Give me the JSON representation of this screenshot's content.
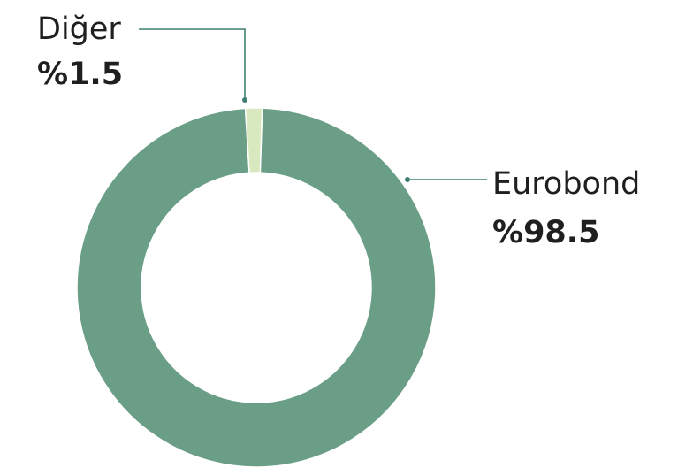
{
  "chart_data": {
    "type": "pie",
    "donut": true,
    "slices": [
      {
        "label": "Eurobond",
        "value_text": "%98.5",
        "value": 98.5,
        "color": "#6b9e87"
      },
      {
        "label": "Diğer",
        "value_text": "%1.5",
        "value": 1.5,
        "color": "#d8e9bf"
      }
    ]
  }
}
